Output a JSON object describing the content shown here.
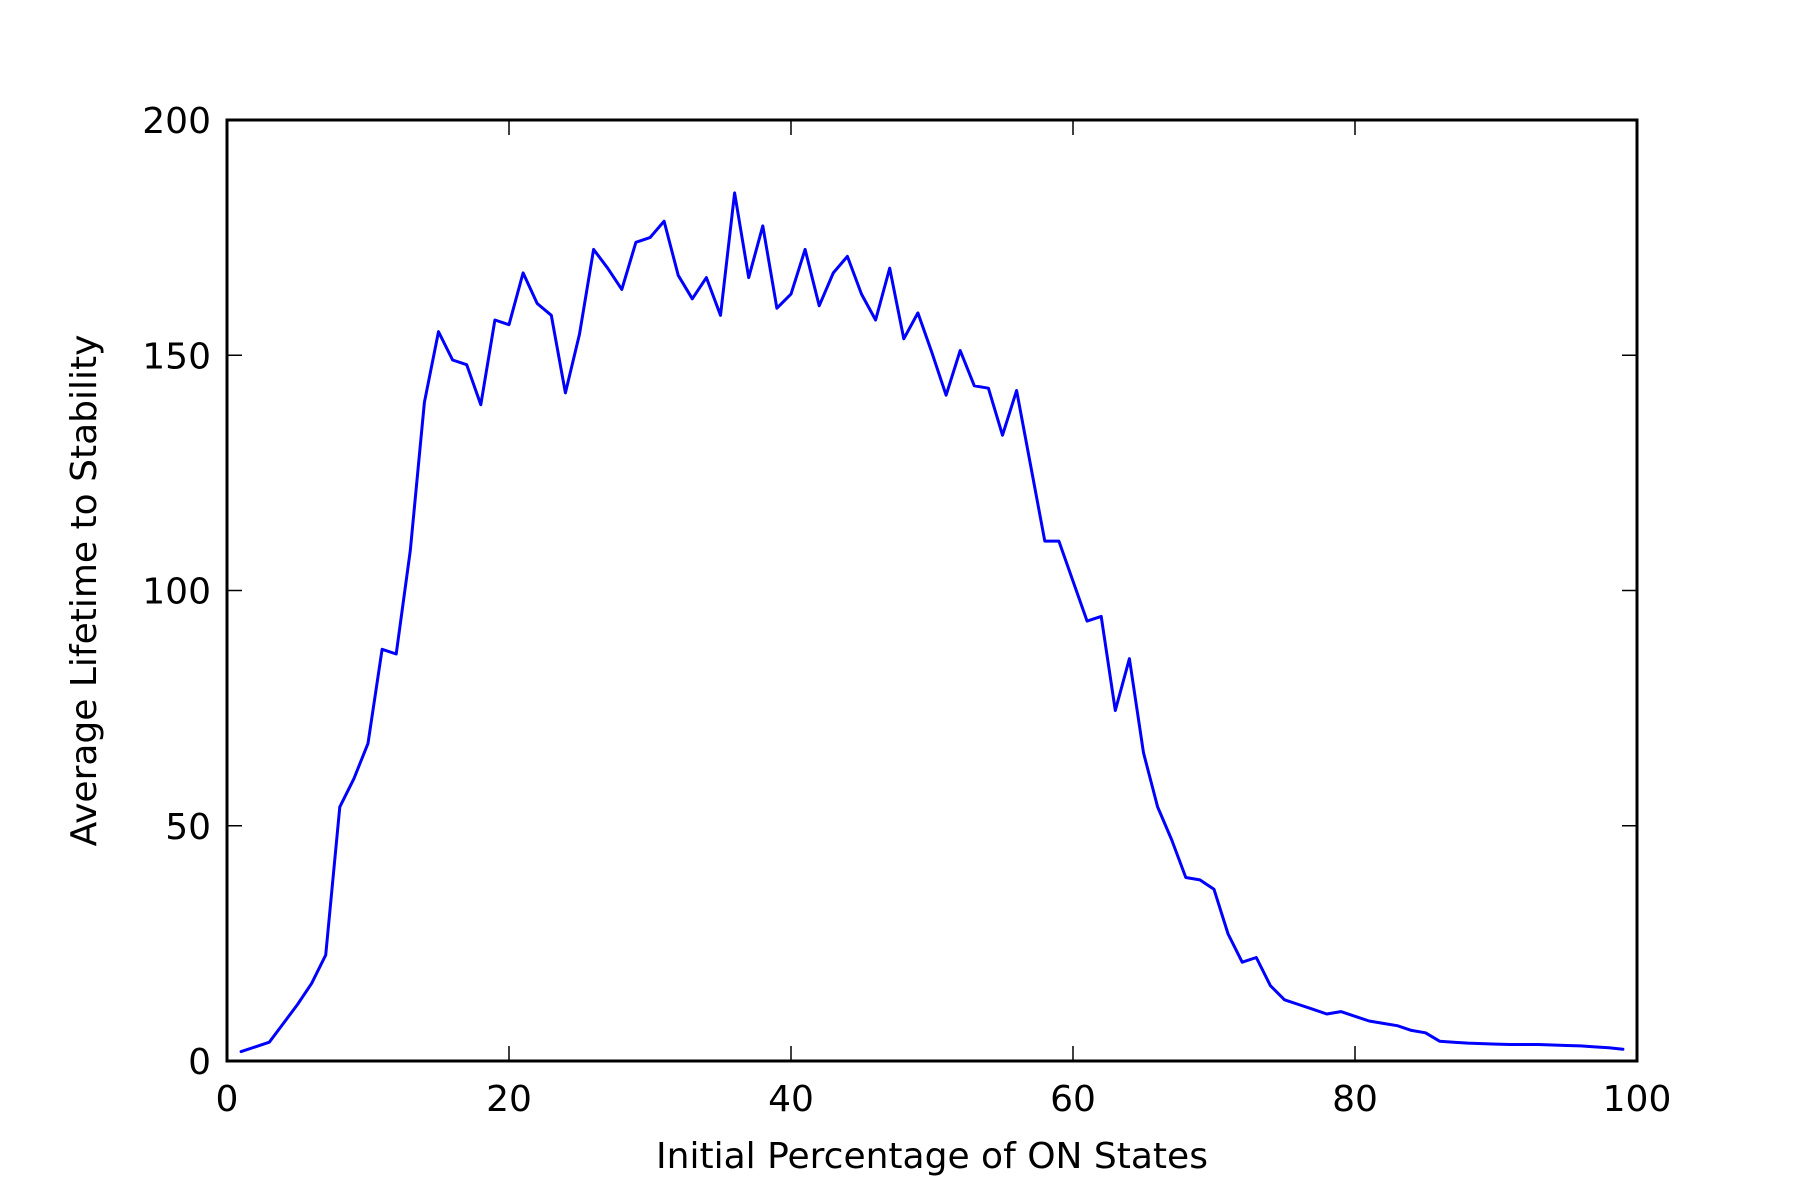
{
  "chart_data": {
    "type": "line",
    "title": "",
    "xlabel": "Initial Percentage of ON States",
    "ylabel": "Average Lifetime to Stability",
    "xlim": [
      0,
      100
    ],
    "ylim": [
      0,
      200
    ],
    "xticks": [
      "0",
      "20",
      "40",
      "60",
      "80",
      "100"
    ],
    "yticks": [
      "0",
      "50",
      "100",
      "150",
      "200"
    ],
    "grid": false,
    "legend": "none",
    "series": [
      {
        "color": "#0000ff",
        "x": [
          1,
          2,
          3,
          4,
          5,
          6,
          7,
          8,
          9,
          10,
          11,
          12,
          13,
          14,
          15,
          16,
          17,
          18,
          19,
          20,
          21,
          22,
          23,
          24,
          25,
          26,
          27,
          28,
          29,
          30,
          31,
          32,
          33,
          34,
          35,
          36,
          37,
          38,
          39,
          40,
          41,
          42,
          43,
          44,
          45,
          46,
          47,
          48,
          49,
          50,
          51,
          52,
          53,
          54,
          55,
          56,
          57,
          58,
          59,
          60,
          61,
          62,
          63,
          64,
          65,
          66,
          67,
          68,
          69,
          70,
          71,
          72,
          73,
          74,
          75,
          76,
          77,
          78,
          79,
          80,
          81,
          82,
          83,
          84,
          85,
          86,
          87,
          88,
          89,
          90,
          91,
          92,
          93,
          94,
          95,
          96,
          97,
          98,
          99
        ],
        "values": [
          2,
          3,
          4,
          8,
          12,
          16.5,
          22.5,
          54,
          60,
          67.5,
          87.5,
          86.5,
          108.5,
          140,
          155,
          149,
          148,
          139.5,
          157.5,
          156.5,
          167.5,
          161,
          158.5,
          142,
          154.5,
          172.5,
          168.5,
          164,
          174,
          175,
          178.5,
          167,
          162,
          166.5,
          158.5,
          184.5,
          166.5,
          177.5,
          160,
          163,
          172.5,
          160.5,
          167.5,
          171,
          163,
          157.5,
          168.5,
          153.5,
          159,
          150.5,
          141.5,
          151,
          143.5,
          143,
          133,
          142.5,
          126.5,
          110.5,
          110.5,
          102,
          93.5,
          94.5,
          74.5,
          85.5,
          65.5,
          54,
          47,
          39,
          38.5,
          36.5,
          27,
          21,
          22,
          16,
          13,
          12,
          11,
          10,
          10.5,
          9.5,
          8.5,
          8,
          7.5,
          6.5,
          6,
          4.2,
          4,
          3.8,
          3.7,
          3.6,
          3.5,
          3.5,
          3.5,
          3.4,
          3.3,
          3.2,
          3,
          2.8,
          2.5
        ]
      }
    ]
  }
}
